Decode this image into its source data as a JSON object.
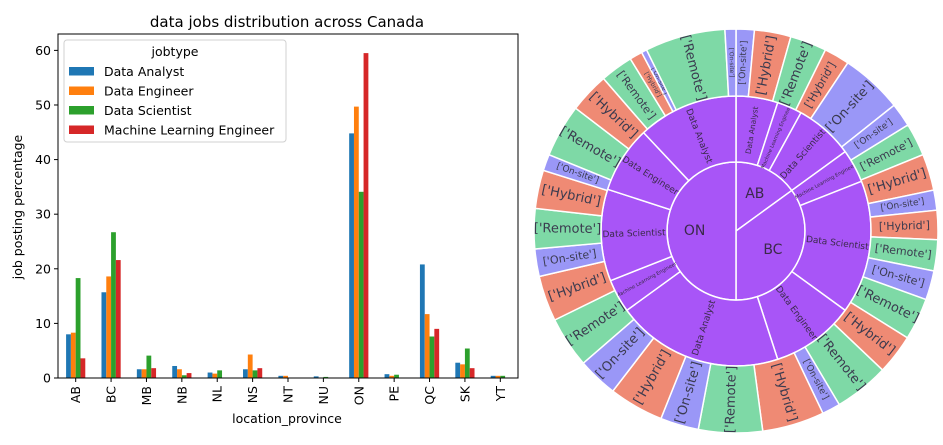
{
  "colors": {
    "data_analyst": "#1f77b4",
    "data_engineer": "#ff7f0e",
    "data_scientist": "#2ca02c",
    "ml_engineer": "#d62728",
    "sunburst_inner": "#a855f7",
    "remote": "#7ed9a6",
    "hybrid": "#ef8a74",
    "onsite": "#9a97f7"
  },
  "chart_data": [
    {
      "type": "bar",
      "title": "data jobs distribution across Canada",
      "xlabel": "location_province",
      "ylabel": "job posting percentage",
      "ylim": [
        0,
        63
      ],
      "yticks": [
        0,
        10,
        20,
        30,
        40,
        50,
        60
      ],
      "grid": false,
      "legend": {
        "title": "jobtype",
        "placement": "upper-left"
      },
      "categories": [
        "AB",
        "BC",
        "MB",
        "NB",
        "NL",
        "NS",
        "NT",
        "NU",
        "ON",
        "PE",
        "QC",
        "SK",
        "YT"
      ],
      "series": [
        {
          "name": "Data Analyst",
          "color_key": "data_analyst",
          "values": [
            8.0,
            15.7,
            1.6,
            2.2,
            1.0,
            1.6,
            0.4,
            0.3,
            44.8,
            0.7,
            20.8,
            2.8,
            0.4
          ]
        },
        {
          "name": "Data Engineer",
          "color_key": "data_engineer",
          "values": [
            8.3,
            18.6,
            1.6,
            1.6,
            0.8,
            4.3,
            0.4,
            0.0,
            49.7,
            0.4,
            11.7,
            2.5,
            0.4
          ]
        },
        {
          "name": "Data Scientist",
          "color_key": "data_scientist",
          "values": [
            18.3,
            26.7,
            4.1,
            0.5,
            1.4,
            1.4,
            0.0,
            0.2,
            34.1,
            0.6,
            7.6,
            5.4,
            0.4
          ]
        },
        {
          "name": "Machine Learning Engineer",
          "color_key": "ml_engineer",
          "values": [
            3.6,
            21.6,
            1.8,
            0.9,
            0.0,
            1.8,
            0.0,
            0.0,
            59.5,
            0.0,
            9.0,
            1.8,
            0.0
          ]
        }
      ]
    },
    {
      "type": "sunburst",
      "rings": [
        {
          "level": "province",
          "segments": [
            {
              "label": "AB",
              "value": 15
            },
            {
              "label": "BC",
              "value": 35
            },
            {
              "label": "ON",
              "value": 50
            }
          ]
        },
        {
          "level": "jobtype",
          "segments": [
            {
              "parent": "AB",
              "label": "Data Analyst",
              "value": 5
            },
            {
              "parent": "AB",
              "label": "Machine Learning Engineer",
              "value": 3
            },
            {
              "parent": "AB",
              "label": "Data Scientist",
              "value": 7
            },
            {
              "parent": "ON",
              "label": "Machine Learning Engineer",
              "value": 4
            },
            {
              "parent": "ON",
              "label": "Data Scientist",
              "value": 16
            },
            {
              "parent": "ON",
              "label": "Data Engineer",
              "value": 10
            },
            {
              "parent": "ON",
              "label": "Data Analyst",
              "value": 20
            },
            {
              "parent": "BC",
              "label": "Machine Learning Engineer",
              "value": 4
            },
            {
              "parent": "BC",
              "label": "Data Scientist",
              "value": 11
            },
            {
              "parent": "BC",
              "label": "Data Engineer",
              "value": 8
            },
            {
              "parent": "BC",
              "label": "Data Analyst",
              "value": 12
            }
          ]
        },
        {
          "level": "work_type",
          "segments": [
            {
              "label": "['On-site']",
              "value": 1.0,
              "kind": "onsite"
            },
            {
              "label": "['Hybrid']",
              "value": 2.0,
              "kind": "hybrid"
            },
            {
              "label": "['Remote']",
              "value": 2.0,
              "kind": "remote"
            },
            {
              "label": "['Hybrid']",
              "value": 1.4,
              "kind": "hybrid"
            },
            {
              "label": "['On-site']",
              "value": 3.4,
              "kind": "onsite"
            },
            {
              "label": "['On-site']",
              "value": 1.3,
              "kind": "onsite"
            },
            {
              "label": "['Remote']",
              "value": 1.8,
              "kind": "remote"
            },
            {
              "label": "['Hybrid']",
              "value": 2.0,
              "kind": "hybrid"
            },
            {
              "label": "['On-site']",
              "value": 1.1,
              "kind": "onsite"
            },
            {
              "label": "['Hybrid']",
              "value": 1.6,
              "kind": "hybrid"
            },
            {
              "label": "['Remote']",
              "value": 1.7,
              "kind": "remote"
            },
            {
              "label": "['On-site']",
              "value": 1.6,
              "kind": "onsite"
            },
            {
              "label": "['Remote']",
              "value": 2.3,
              "kind": "remote"
            },
            {
              "label": "['Hybrid']",
              "value": 2.2,
              "kind": "hybrid"
            },
            {
              "label": "['Remote']",
              "value": 3.0,
              "kind": "remote"
            },
            {
              "label": "['On-site']",
              "value": 1.0,
              "kind": "onsite"
            },
            {
              "label": "['Hybrid']",
              "value": 3.4,
              "kind": "hybrid"
            },
            {
              "label": "['Remote']",
              "value": 3.5,
              "kind": "remote"
            },
            {
              "label": "['On-site']",
              "value": 2.1,
              "kind": "onsite"
            },
            {
              "label": "['Hybrid']",
              "value": 3.0,
              "kind": "hybrid"
            },
            {
              "label": "['On-site']",
              "value": 2.2,
              "kind": "onsite"
            },
            {
              "label": "['Remote']",
              "value": 2.8,
              "kind": "remote"
            },
            {
              "label": "['Hybrid']",
              "value": 2.5,
              "kind": "hybrid"
            },
            {
              "label": "['On-site']",
              "value": 1.5,
              "kind": "onsite"
            },
            {
              "label": "['Remote']",
              "value": 2.2,
              "kind": "remote"
            },
            {
              "label": "['Hybrid']",
              "value": 2.1,
              "kind": "hybrid"
            },
            {
              "label": "['On-site']",
              "value": 0.9,
              "kind": "onsite"
            },
            {
              "label": "['Remote']",
              "value": 2.9,
              "kind": "remote"
            },
            {
              "label": "['Hybrid']",
              "value": 2.2,
              "kind": "hybrid"
            },
            {
              "label": "['Remote']",
              "value": 1.8,
              "kind": "remote"
            },
            {
              "label": "['Hybrid']",
              "value": 0.7,
              "kind": "hybrid"
            },
            {
              "label": "['On-site']",
              "value": 0.3,
              "kind": "onsite"
            },
            {
              "label": "['Remote']",
              "value": 4.4,
              "kind": "remote"
            },
            {
              "label": "['On-site']",
              "value": 0.6,
              "kind": "onsite"
            }
          ]
        }
      ]
    }
  ]
}
